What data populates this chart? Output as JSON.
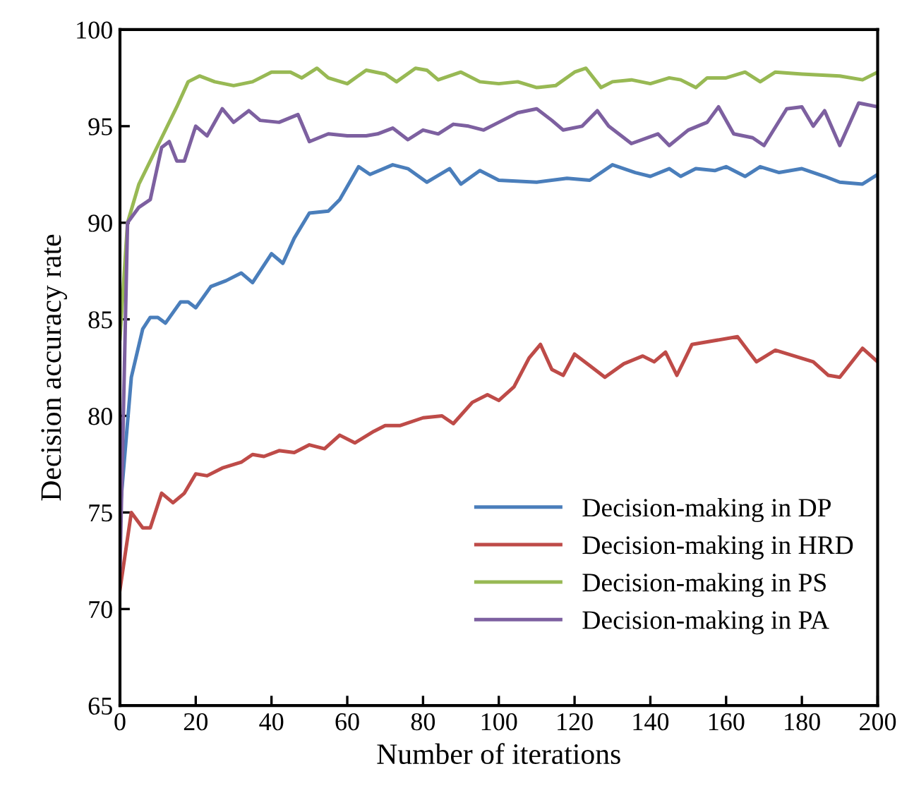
{
  "chart_data": {
    "type": "line",
    "xlabel": "Number of iterations",
    "ylabel": "Decision accuracy rate",
    "xlim": [
      0,
      200
    ],
    "ylim": [
      65,
      100
    ],
    "xticks": [
      0,
      20,
      40,
      60,
      80,
      100,
      120,
      140,
      160,
      180,
      200
    ],
    "yticks": [
      65,
      70,
      75,
      80,
      85,
      90,
      95,
      100
    ],
    "grid": false,
    "legend": "bottom right",
    "marker": "none",
    "line_style": "solid",
    "series": [
      {
        "name": "Decision-making in DP",
        "color": "#4a7ebb",
        "x": [
          0,
          3,
          6,
          8,
          10,
          12,
          16,
          18,
          20,
          24,
          28,
          32,
          35,
          40,
          43,
          46,
          50,
          55,
          58,
          63,
          66,
          72,
          76,
          81,
          87,
          90,
          95,
          100,
          110,
          118,
          124,
          130,
          136,
          140,
          145,
          148,
          152,
          157,
          160,
          165,
          169,
          174,
          180,
          186,
          190,
          196,
          200
        ],
        "values": [
          75,
          82,
          84.5,
          85.1,
          85.1,
          84.8,
          85.9,
          85.9,
          85.6,
          86.7,
          87.0,
          87.4,
          86.9,
          88.4,
          87.9,
          89.2,
          90.5,
          90.6,
          91.2,
          92.9,
          92.5,
          93.0,
          92.8,
          92.1,
          92.8,
          92.0,
          92.7,
          92.2,
          92.1,
          92.3,
          92.2,
          93.0,
          92.6,
          92.4,
          92.8,
          92.4,
          92.8,
          92.7,
          92.9,
          92.4,
          92.9,
          92.6,
          92.8,
          92.4,
          92.1,
          92.0,
          92.5
        ]
      },
      {
        "name": "Decision-making in HRD",
        "color": "#be4b48",
        "x": [
          0,
          3,
          6,
          8,
          11,
          14,
          17,
          20,
          23,
          27,
          32,
          35,
          38,
          42,
          46,
          50,
          54,
          58,
          62,
          67,
          70,
          74,
          80,
          85,
          88,
          93,
          97,
          100,
          104,
          108,
          111,
          114,
          117,
          120,
          124,
          128,
          133,
          138,
          141,
          144,
          147,
          151,
          157,
          163,
          168,
          173,
          178,
          183,
          187,
          190,
          196,
          200
        ],
        "values": [
          71,
          75,
          74.2,
          74.2,
          76,
          75.5,
          76,
          77,
          76.9,
          77.3,
          77.6,
          78,
          77.9,
          78.2,
          78.1,
          78.5,
          78.3,
          79,
          78.6,
          79.2,
          79.5,
          79.5,
          79.9,
          80.0,
          79.6,
          80.7,
          81.1,
          80.8,
          81.5,
          83,
          83.7,
          82.4,
          82.1,
          83.2,
          82.6,
          82.0,
          82.7,
          83.1,
          82.8,
          83.3,
          82.1,
          83.7,
          83.9,
          84.1,
          82.8,
          83.4,
          83.1,
          82.8,
          82.1,
          82.0,
          83.5,
          82.8
        ]
      },
      {
        "name": "Decision-making in PS",
        "color": "#98b954",
        "x": [
          0,
          2,
          5,
          10,
          15,
          18,
          21,
          25,
          30,
          35,
          40,
          45,
          48,
          52,
          55,
          60,
          65,
          70,
          73,
          78,
          81,
          84,
          90,
          95,
          100,
          105,
          110,
          115,
          120,
          123,
          127,
          130,
          135,
          140,
          145,
          148,
          152,
          155,
          160,
          165,
          169,
          173,
          180,
          190,
          196,
          200
        ],
        "values": [
          84,
          90,
          92,
          94,
          96,
          97.3,
          97.6,
          97.3,
          97.1,
          97.3,
          97.8,
          97.8,
          97.5,
          98,
          97.5,
          97.2,
          97.9,
          97.7,
          97.3,
          98,
          97.9,
          97.4,
          97.8,
          97.3,
          97.2,
          97.3,
          97.0,
          97.1,
          97.8,
          98.0,
          97.0,
          97.3,
          97.4,
          97.2,
          97.5,
          97.4,
          97.0,
          97.5,
          97.5,
          97.8,
          97.3,
          97.8,
          97.7,
          97.6,
          97.4,
          97.8
        ]
      },
      {
        "name": "Decision-making in PA",
        "color": "#7d60a0",
        "x": [
          0,
          2,
          5,
          8,
          11,
          13,
          15,
          17,
          20,
          23,
          27,
          30,
          34,
          37,
          42,
          47,
          50,
          55,
          60,
          65,
          68,
          72,
          76,
          80,
          84,
          88,
          92,
          96,
          100,
          105,
          110,
          114,
          117,
          122,
          126,
          129,
          135,
          142,
          145,
          150,
          155,
          158,
          162,
          167,
          170,
          176,
          180,
          183,
          186,
          190,
          195,
          200
        ],
        "values": [
          72,
          90,
          90.8,
          91.2,
          93.9,
          94.2,
          93.2,
          93.2,
          95,
          94.5,
          95.9,
          95.2,
          95.8,
          95.3,
          95.2,
          95.6,
          94.2,
          94.6,
          94.5,
          94.5,
          94.6,
          94.9,
          94.3,
          94.8,
          94.6,
          95.1,
          95.0,
          94.8,
          95.2,
          95.7,
          95.9,
          95.3,
          94.8,
          95.0,
          95.8,
          95.0,
          94.1,
          94.6,
          94.0,
          94.8,
          95.2,
          96.0,
          94.6,
          94.4,
          94.0,
          95.9,
          96.0,
          95.0,
          95.8,
          94.0,
          96.2,
          96.0
        ]
      }
    ]
  }
}
